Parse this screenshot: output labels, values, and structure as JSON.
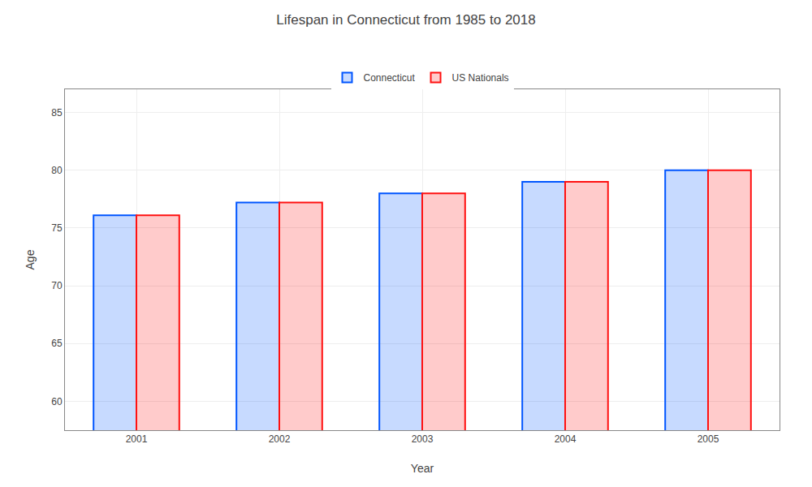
{
  "chart_data": {
    "type": "bar",
    "title": "Lifespan in Connecticut from 1985 to 2018",
    "xlabel": "Year",
    "ylabel": "Age",
    "categories": [
      "2001",
      "2002",
      "2003",
      "2004",
      "2005"
    ],
    "series": [
      {
        "name": "Connecticut",
        "color": "#0055ff",
        "values": [
          76.1,
          77.2,
          78.0,
          79.0,
          80.0
        ]
      },
      {
        "name": "US Nationals",
        "color": "#ff1111",
        "values": [
          76.1,
          77.2,
          78.0,
          79.0,
          80.0
        ]
      }
    ],
    "ylim": [
      57.5,
      87
    ],
    "yticks": [
      60,
      65,
      70,
      75,
      80,
      85
    ],
    "grid": true,
    "legend": "top"
  }
}
